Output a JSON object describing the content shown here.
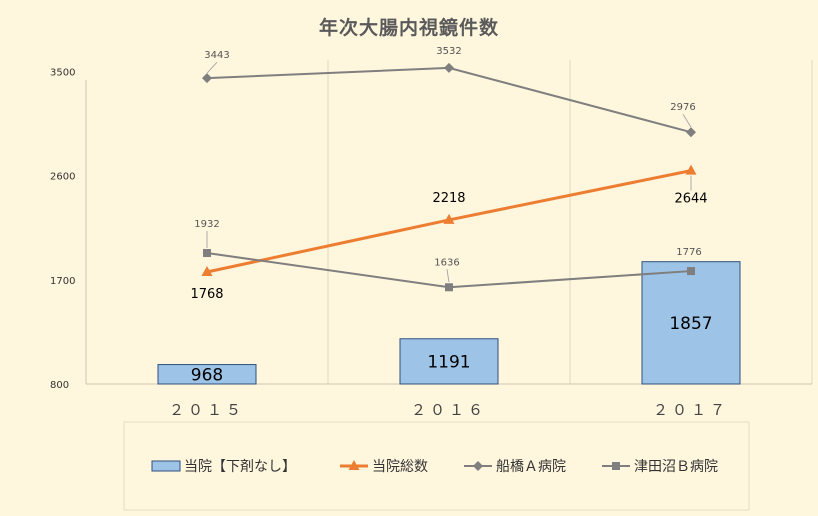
{
  "chart_data": {
    "type": "bar+line",
    "title": "年次大腸内視鏡件数",
    "categories": [
      "２０１５",
      "２０１６",
      "２０１７"
    ],
    "ylim": [
      800,
      3600
    ],
    "yticks": [
      "800",
      "1700",
      "2600",
      "3500"
    ],
    "ytick_values": [
      800,
      1700,
      2600,
      3500
    ],
    "grid": "vertical-only",
    "legend_position": "bottom",
    "series": [
      {
        "name": "当院【下剤なし】",
        "kind": "bar",
        "color": "#9dc3e6",
        "values": [
          968,
          1191,
          1857
        ],
        "labels": [
          "968",
          "1191",
          "1857"
        ]
      },
      {
        "name": "当院総数",
        "kind": "line",
        "marker": "triangle",
        "color": "#ed7d31",
        "values": [
          1768,
          2218,
          2644
        ],
        "labels": [
          "1768",
          "2218",
          "2644"
        ]
      },
      {
        "name": "船橋Ａ病院",
        "kind": "line",
        "marker": "diamond",
        "color": "#7f7f7f",
        "values": [
          3443,
          3532,
          2976
        ],
        "labels": [
          "3443",
          "3532",
          "2976"
        ]
      },
      {
        "name": "津田沼Ｂ病院",
        "kind": "line",
        "marker": "square",
        "color": "#7f7f7f",
        "values": [
          1932,
          1636,
          1776
        ],
        "labels": [
          "1932",
          "1636",
          "1776"
        ]
      }
    ]
  }
}
